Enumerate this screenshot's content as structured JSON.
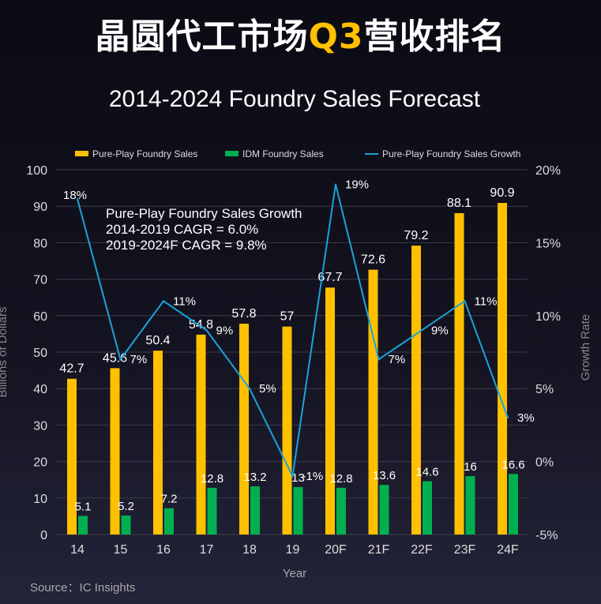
{
  "banner": {
    "before": "晶圆代工市场",
    "highlight": "Q3",
    "after": "营收排名"
  },
  "source": "Source：IC Insights",
  "colors": {
    "pure": "#ffc000",
    "idm": "#00b050",
    "growth": "#1aa3d9"
  },
  "chart_data": {
    "type": "bar",
    "title": "2014-2024 Foundry Sales Forecast",
    "xlabel": "Year",
    "ylabel": "Billions of Dollars",
    "y2label": "Growth Rate",
    "ylim": [
      0,
      100
    ],
    "y2lim": [
      -5,
      20
    ],
    "yticks": [
      "0",
      "10",
      "20",
      "30",
      "40",
      "50",
      "60",
      "70",
      "80",
      "90",
      "100"
    ],
    "y2ticks": [
      "-5%",
      "0%",
      "5%",
      "10%",
      "15%",
      "20%"
    ],
    "categories": [
      "14",
      "15",
      "16",
      "17",
      "18",
      "19",
      "20F",
      "21F",
      "22F",
      "23F",
      "24F"
    ],
    "legend": [
      "Pure-Play Foundry Sales",
      "IDM Foundry Sales",
      "Pure-Play Foundry Sales Growth"
    ],
    "legend_position": "top",
    "series": [
      {
        "name": "Pure-Play Foundry Sales",
        "type": "bar",
        "values": [
          42.7,
          45.6,
          50.4,
          54.8,
          57.8,
          57,
          67.7,
          72.6,
          79.2,
          88.1,
          90.9
        ],
        "labels": [
          "42.7",
          "45.6",
          "50.4",
          "54.8",
          "57.8",
          "57",
          "67.7",
          "72.6",
          "79.2",
          "88.1",
          "90.9"
        ]
      },
      {
        "name": "IDM Foundry Sales",
        "type": "bar",
        "values": [
          5.1,
          5.2,
          7.2,
          12.8,
          13.2,
          13,
          12.8,
          13.6,
          14.6,
          16,
          16.6
        ],
        "labels": [
          "5.1",
          "5.2",
          "7.2",
          "12.8",
          "13.2",
          "13",
          "12.8",
          "13.6",
          "14.6",
          "16",
          "16.6"
        ]
      },
      {
        "name": "Pure-Play Foundry Sales Growth",
        "type": "line",
        "axis": "right",
        "values": [
          18,
          7,
          11,
          9,
          5,
          -1,
          19,
          7,
          9,
          11,
          3
        ],
        "labels": [
          "18%",
          "7%",
          "11%",
          "9%",
          "5%",
          "-1%",
          "19%",
          "7%",
          "9%",
          "11%",
          "3%"
        ]
      }
    ],
    "annotation": [
      "Pure-Play Foundry Sales Growth",
      "2014-2019 CAGR = 6.0%",
      "2019-2024F CAGR = 9.8%"
    ]
  }
}
